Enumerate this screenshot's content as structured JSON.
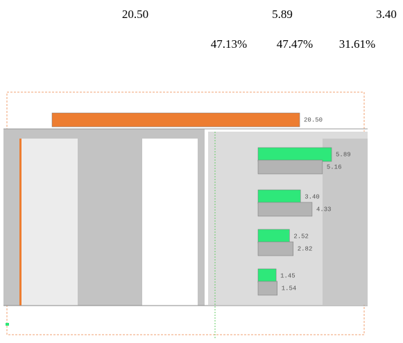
{
  "summary": {
    "row1": [
      "20.50",
      "5.89",
      "3.40"
    ],
    "row2": [
      "47.13%",
      "47.47%",
      "31.61%"
    ]
  },
  "chart_data": [
    {
      "type": "hbar",
      "categories": [
        null
      ],
      "xlim": [
        0,
        24
      ],
      "series": [
        {
          "color": "#ed7d31",
          "values": [
            20.5
          ],
          "value_labels": [
            "20.50"
          ]
        }
      ]
    },
    {
      "type": "hbar",
      "categories": [
        null,
        null,
        null,
        null
      ],
      "xlim": [
        0,
        8.5
      ],
      "series": [
        {
          "color": "#2ee87a",
          "values": [
            5.89,
            3.4,
            2.52,
            1.45
          ],
          "value_labels": [
            "5.89",
            "3.40",
            "2.52",
            "1.45"
          ]
        },
        {
          "color": "#b4b4b4",
          "values": [
            5.16,
            4.33,
            2.82,
            1.54
          ],
          "value_labels": [
            "5.16",
            "4.33",
            "2.82",
            "1.54"
          ]
        }
      ]
    }
  ]
}
